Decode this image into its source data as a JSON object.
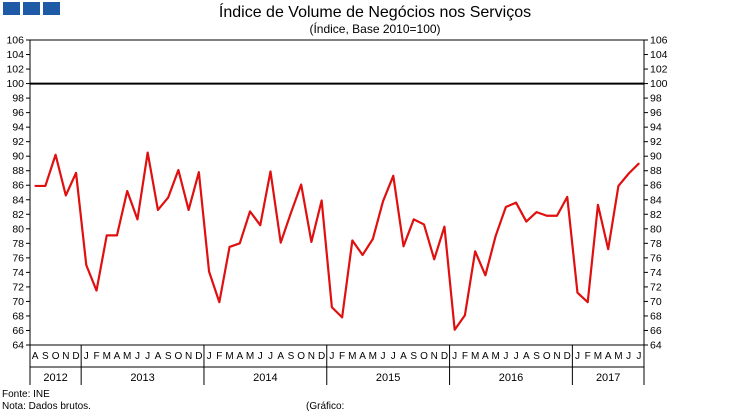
{
  "header": {
    "logo_color": "#1f5aa6"
  },
  "footer": {
    "source": "Fonte: INE",
    "note": "Nota: Dados brutos.",
    "chart_ref": "(Gráfico:"
  },
  "chart_data": {
    "type": "line",
    "title": "Índice de Volume de Negócios nos Serviços",
    "subtitle": "(Índice, Base 2010=100)",
    "xlabel": "",
    "ylabel": "",
    "ylim": [
      64,
      106
    ],
    "yticks": [
      64,
      66,
      68,
      70,
      72,
      74,
      76,
      78,
      80,
      82,
      84,
      86,
      88,
      90,
      92,
      94,
      96,
      98,
      100,
      102,
      104,
      106
    ],
    "reference_line": 100,
    "line_color": "#e01010",
    "months": [
      "A",
      "S",
      "O",
      "N",
      "D",
      "J",
      "F",
      "M",
      "A",
      "M",
      "J",
      "J",
      "A",
      "S",
      "O",
      "N",
      "D",
      "J",
      "F",
      "M",
      "A",
      "M",
      "J",
      "J",
      "A",
      "S",
      "O",
      "N",
      "D",
      "J",
      "F",
      "M",
      "A",
      "M",
      "J",
      "J",
      "A",
      "S",
      "O",
      "N",
      "D",
      "J",
      "F",
      "M",
      "A",
      "M",
      "J",
      "J",
      "A",
      "S",
      "O",
      "N",
      "D",
      "J",
      "F",
      "M",
      "A",
      "M",
      "J",
      "J"
    ],
    "years": [
      {
        "label": "2012",
        "start": 0,
        "count": 5
      },
      {
        "label": "2013",
        "start": 5,
        "count": 12
      },
      {
        "label": "2014",
        "start": 17,
        "count": 12
      },
      {
        "label": "2015",
        "start": 29,
        "count": 12
      },
      {
        "label": "2016",
        "start": 41,
        "count": 12
      },
      {
        "label": "2017",
        "start": 53,
        "count": 7
      }
    ],
    "series": [
      {
        "name": "Índice de Volume de Negócios nos Serviços",
        "values": [
          85.9,
          85.9,
          90.2,
          84.6,
          87.7,
          75.0,
          71.5,
          79.1,
          79.1,
          85.2,
          81.3,
          90.5,
          82.6,
          84.3,
          88.1,
          82.6,
          87.8,
          74.1,
          69.9,
          77.5,
          78.0,
          82.4,
          80.5,
          87.9,
          78.1,
          82.2,
          86.1,
          78.2,
          83.9,
          69.2,
          67.8,
          78.4,
          76.4,
          78.6,
          83.8,
          87.3,
          77.6,
          81.3,
          80.6,
          75.8,
          80.3,
          66.1,
          68.1,
          76.9,
          73.6,
          79.0,
          83.0,
          83.6,
          81.0,
          82.3,
          81.8,
          81.8,
          84.4,
          71.2,
          69.9,
          83.3,
          77.2,
          85.9,
          87.6,
          89.0
        ]
      }
    ]
  }
}
